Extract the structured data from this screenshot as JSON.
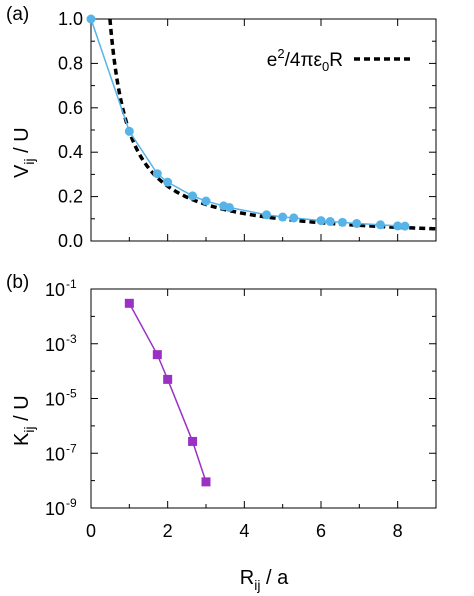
{
  "chart_data": [
    {
      "panel_label": "(a)",
      "type": "line",
      "ylabel_main": "V",
      "ylabel_sub": "ij",
      "ylabel_rest": " / U",
      "xlim": [
        0,
        9
      ],
      "ylim": [
        0,
        1.0
      ],
      "y_scale": "linear",
      "grid": false,
      "y_ticks": [
        0.0,
        0.2,
        0.4,
        0.6,
        0.8,
        1.0
      ],
      "y_tick_labels": [
        "0.0",
        "0.2",
        "0.4",
        "0.6",
        "0.8",
        "1.0"
      ],
      "legend_position": "top-right",
      "series": [
        {
          "name": "",
          "color": "#56b4e9",
          "style": "line-points",
          "x": [
            0,
            1.0,
            1.73,
            2.0,
            2.65,
            3.0,
            3.46,
            3.61,
            4.58,
            5.0,
            5.29,
            6.0,
            6.24,
            6.56,
            6.93,
            7.55,
            8.0,
            8.19
          ],
          "y": [
            1.0,
            0.494,
            0.303,
            0.265,
            0.203,
            0.18,
            0.158,
            0.151,
            0.118,
            0.108,
            0.104,
            0.092,
            0.088,
            0.084,
            0.079,
            0.073,
            0.068,
            0.067
          ]
        },
        {
          "name": "e²/4πε₀R",
          "legend_parts": [
            "e",
            "2",
            "/4πε",
            "0",
            "R"
          ],
          "color": "#000000",
          "style": "dashed",
          "function": "0.494 / x",
          "x_range": [
            0.494,
            9.0
          ]
        }
      ]
    },
    {
      "panel_label": "(b)",
      "type": "line",
      "ylabel_main": "K",
      "ylabel_sub": "ij",
      "ylabel_rest": " / U",
      "xlabel_main": "R",
      "xlabel_sub": "ij",
      "xlabel_rest": " / a",
      "xlim": [
        0,
        9
      ],
      "y_scale": "log",
      "ylim": [
        1e-09,
        0.1
      ],
      "grid": false,
      "x_ticks": [
        0,
        2,
        4,
        6,
        8
      ],
      "x_tick_labels": [
        "0",
        "2",
        "4",
        "6",
        "8"
      ],
      "y_ticks": [
        -1,
        -3,
        -5,
        -7,
        -9
      ],
      "y_tick_labels": [
        "10",
        "10",
        "10",
        "10",
        "10"
      ],
      "y_tick_exponents": [
        "-1",
        "-3",
        "-5",
        "-7",
        "-9"
      ],
      "series": [
        {
          "name": "",
          "color": "#9b30c4",
          "style": "line-squares",
          "x": [
            1.0,
            1.73,
            2.0,
            2.65,
            3.0
          ],
          "y": [
            0.03,
            0.0004,
            5e-05,
            2.7e-07,
            9e-09
          ]
        }
      ]
    }
  ]
}
